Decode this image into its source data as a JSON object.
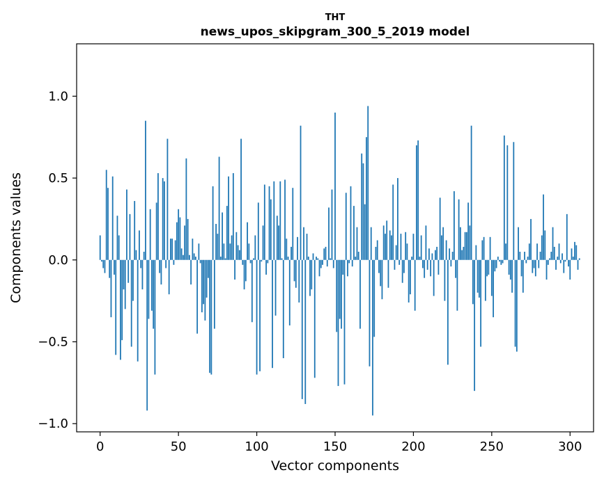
{
  "chart_data": {
    "type": "bar",
    "title": "THT",
    "subtitle": "news_upos_skipgram_300_5_2019 model",
    "xlabel": "Vector components",
    "ylabel": "Components values",
    "xlim": [
      -15,
      315
    ],
    "ylim": [
      -1.05,
      1.32
    ],
    "xticks": [
      0,
      50,
      100,
      150,
      200,
      250,
      300
    ],
    "xtick_labels": [
      "0",
      "50",
      "100",
      "150",
      "200",
      "250",
      "300"
    ],
    "yticks": [
      -1.0,
      -0.5,
      0.0,
      0.5,
      1.0
    ],
    "ytick_labels": [
      "−1.0",
      "−0.5",
      "0.0",
      "0.5",
      "1.0"
    ],
    "grid": false,
    "bar_color": "#1f77b4",
    "values": [
      0.15,
      -0.01,
      -0.05,
      -0.08,
      0.55,
      0.44,
      -0.11,
      -0.35,
      0.51,
      -0.09,
      -0.58,
      0.27,
      0.15,
      -0.61,
      -0.49,
      -0.18,
      -0.3,
      0.43,
      -0.14,
      0.28,
      -0.53,
      -0.25,
      0.36,
      0.06,
      -0.62,
      0.18,
      -0.05,
      -0.18,
      0.05,
      0.85,
      -0.92,
      -0.36,
      0.31,
      -0.31,
      -0.42,
      -0.7,
      0.35,
      0.53,
      -0.08,
      -0.15,
      0.5,
      0.48,
      -0.05,
      0.74,
      -0.21,
      0.13,
      0.13,
      -0.03,
      0.12,
      0.23,
      0.31,
      0.26,
      0.07,
      0.03,
      0.21,
      0.62,
      0.25,
      0.03,
      -0.15,
      0.13,
      0.04,
      0.02,
      -0.45,
      0.1,
      -0.02,
      -0.32,
      -0.27,
      -0.37,
      -0.23,
      -0.11,
      -0.69,
      -0.7,
      0.45,
      -0.42,
      0.22,
      0.16,
      0.63,
      0.02,
      0.29,
      0.1,
      0.01,
      0.33,
      0.51,
      0.1,
      0.15,
      0.53,
      -0.12,
      0.17,
      0.09,
      0.06,
      0.74,
      -0.03,
      -0.18,
      -0.13,
      0.23,
      0.1,
      -0.02,
      -0.38,
      0.01,
      0.15,
      -0.7,
      0.35,
      -0.68,
      -0.01,
      0.21,
      0.46,
      -0.09,
      -0.02,
      0.45,
      0.37,
      -0.66,
      0.48,
      -0.34,
      0.27,
      0.21,
      0.48,
      0.01,
      -0.6,
      0.49,
      0.13,
      0.02,
      -0.4,
      0.08,
      0.44,
      -0.13,
      -0.17,
      0.14,
      -0.26,
      0.82,
      -0.85,
      0.2,
      -0.88,
      0.16,
      0.02,
      -0.22,
      -0.18,
      0.04,
      -0.72,
      0.02,
      0.01,
      -0.1,
      -0.05,
      -0.03,
      0.07,
      0.08,
      -0.04,
      0.32,
      0.01,
      0.43,
      -0.05,
      0.9,
      -0.44,
      -0.77,
      -0.36,
      -0.42,
      -0.09,
      -0.76,
      0.41,
      -0.1,
      -0.02,
      0.45,
      -0.04,
      0.33,
      0.02,
      0.2,
      0.05,
      -0.42,
      0.65,
      0.59,
      0.34,
      0.75,
      0.94,
      -0.65,
      0.2,
      -0.95,
      -0.47,
      0.08,
      0.12,
      -0.08,
      -0.16,
      -0.24,
      0.21,
      0.16,
      0.24,
      -0.17,
      0.18,
      0.15,
      0.46,
      -0.06,
      0.09,
      0.5,
      -0.03,
      0.16,
      -0.14,
      -0.08,
      0.17,
      0.1,
      -0.26,
      -0.21,
      0.02,
      0.16,
      -0.31,
      0.7,
      0.73,
      0.02,
      0.15,
      -0.05,
      -0.11,
      0.21,
      -0.06,
      0.07,
      -0.1,
      0.04,
      -0.22,
      0.06,
      0.08,
      -0.09,
      0.38,
      0.15,
      0.2,
      -0.25,
      0.12,
      -0.64,
      0.07,
      -0.04,
      0.05,
      0.42,
      -0.11,
      -0.31,
      0.37,
      0.2,
      0.06,
      0.08,
      0.17,
      0.17,
      0.35,
      0.21,
      0.82,
      -0.27,
      -0.8,
      0.09,
      -0.2,
      -0.23,
      -0.53,
      0.12,
      0.14,
      -0.25,
      -0.1,
      -0.09,
      0.14,
      -0.22,
      -0.35,
      -0.07,
      -0.05,
      0.02,
      -0.01,
      -0.03,
      -0.02,
      0.76,
      0.1,
      0.7,
      -0.09,
      -0.12,
      -0.2,
      0.72,
      -0.53,
      -0.56,
      0.2,
      0.05,
      -0.1,
      -0.2,
      0.05,
      -0.02,
      0.02,
      0.1,
      0.25,
      -0.08,
      -0.05,
      -0.1,
      0.1,
      -0.05,
      0.05,
      0.15,
      0.4,
      0.18,
      -0.12,
      -0.03,
      0.01,
      0.05,
      0.2,
      0.08,
      -0.06,
      0.02,
      0.1,
      -0.02,
      0.04,
      -0.08,
      -0.01,
      0.28,
      -0.04,
      -0.12,
      0.07,
      0.02,
      0.11,
      0.09,
      -0.06,
      0.01
    ]
  }
}
